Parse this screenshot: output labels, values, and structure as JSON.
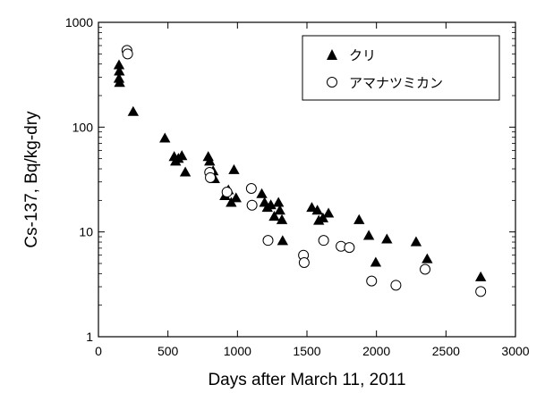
{
  "chart_data": {
    "type": "scatter",
    "title": "",
    "xlabel": "Days after March 11, 2011",
    "ylabel": "Cs-137, Bq/kg-dry",
    "x_scale": "linear",
    "y_scale": "log",
    "xlim": [
      0,
      3000
    ],
    "ylim": [
      1,
      1000
    ],
    "x_ticks": [
      0,
      500,
      1000,
      1500,
      2000,
      2500,
      3000
    ],
    "y_ticks": [
      1,
      10,
      100,
      1000
    ],
    "x_tick_labels": [
      "0",
      "500",
      "1000",
      "1500",
      "2000",
      "2500",
      "3000"
    ],
    "y_tick_labels": [
      "1",
      "10",
      "100",
      "1000"
    ],
    "grid": false,
    "legend_position": "top-right",
    "series": [
      {
        "name": "クリ",
        "marker": "filled-triangle",
        "color": "#000000",
        "points": [
          [
            148,
            390
          ],
          [
            150,
            340
          ],
          [
            148,
            290
          ],
          [
            152,
            265
          ],
          [
            250,
            140
          ],
          [
            478,
            78
          ],
          [
            545,
            52
          ],
          [
            555,
            47
          ],
          [
            575,
            50
          ],
          [
            600,
            53
          ],
          [
            625,
            37
          ],
          [
            790,
            52
          ],
          [
            800,
            47
          ],
          [
            825,
            38
          ],
          [
            835,
            32
          ],
          [
            910,
            22
          ],
          [
            935,
            25
          ],
          [
            955,
            19
          ],
          [
            975,
            39
          ],
          [
            990,
            21
          ],
          [
            1175,
            23
          ],
          [
            1195,
            19
          ],
          [
            1215,
            17
          ],
          [
            1240,
            18
          ],
          [
            1265,
            14
          ],
          [
            1295,
            19
          ],
          [
            1305,
            16
          ],
          [
            1320,
            13
          ],
          [
            1325,
            8.2
          ],
          [
            1535,
            17
          ],
          [
            1575,
            16
          ],
          [
            1585,
            12.8
          ],
          [
            1615,
            13.5
          ],
          [
            1655,
            15
          ],
          [
            1875,
            13
          ],
          [
            1945,
            9.2
          ],
          [
            1995,
            5.1
          ],
          [
            2075,
            8.5
          ],
          [
            2285,
            8.0
          ],
          [
            2365,
            5.5
          ],
          [
            2750,
            3.7
          ]
        ]
      },
      {
        "name": "アマナツミカン",
        "marker": "open-circle",
        "color": "#000000",
        "points": [
          [
            205,
            540
          ],
          [
            210,
            500
          ],
          [
            800,
            37
          ],
          [
            805,
            33
          ],
          [
            925,
            24
          ],
          [
            1100,
            26
          ],
          [
            1105,
            18
          ],
          [
            1220,
            8.3
          ],
          [
            1475,
            6.0
          ],
          [
            1480,
            5.1
          ],
          [
            1620,
            8.3
          ],
          [
            1745,
            7.3
          ],
          [
            1805,
            7.1
          ],
          [
            1965,
            3.4
          ],
          [
            2140,
            3.1
          ],
          [
            2350,
            4.4
          ],
          [
            2750,
            2.7
          ]
        ]
      }
    ]
  }
}
